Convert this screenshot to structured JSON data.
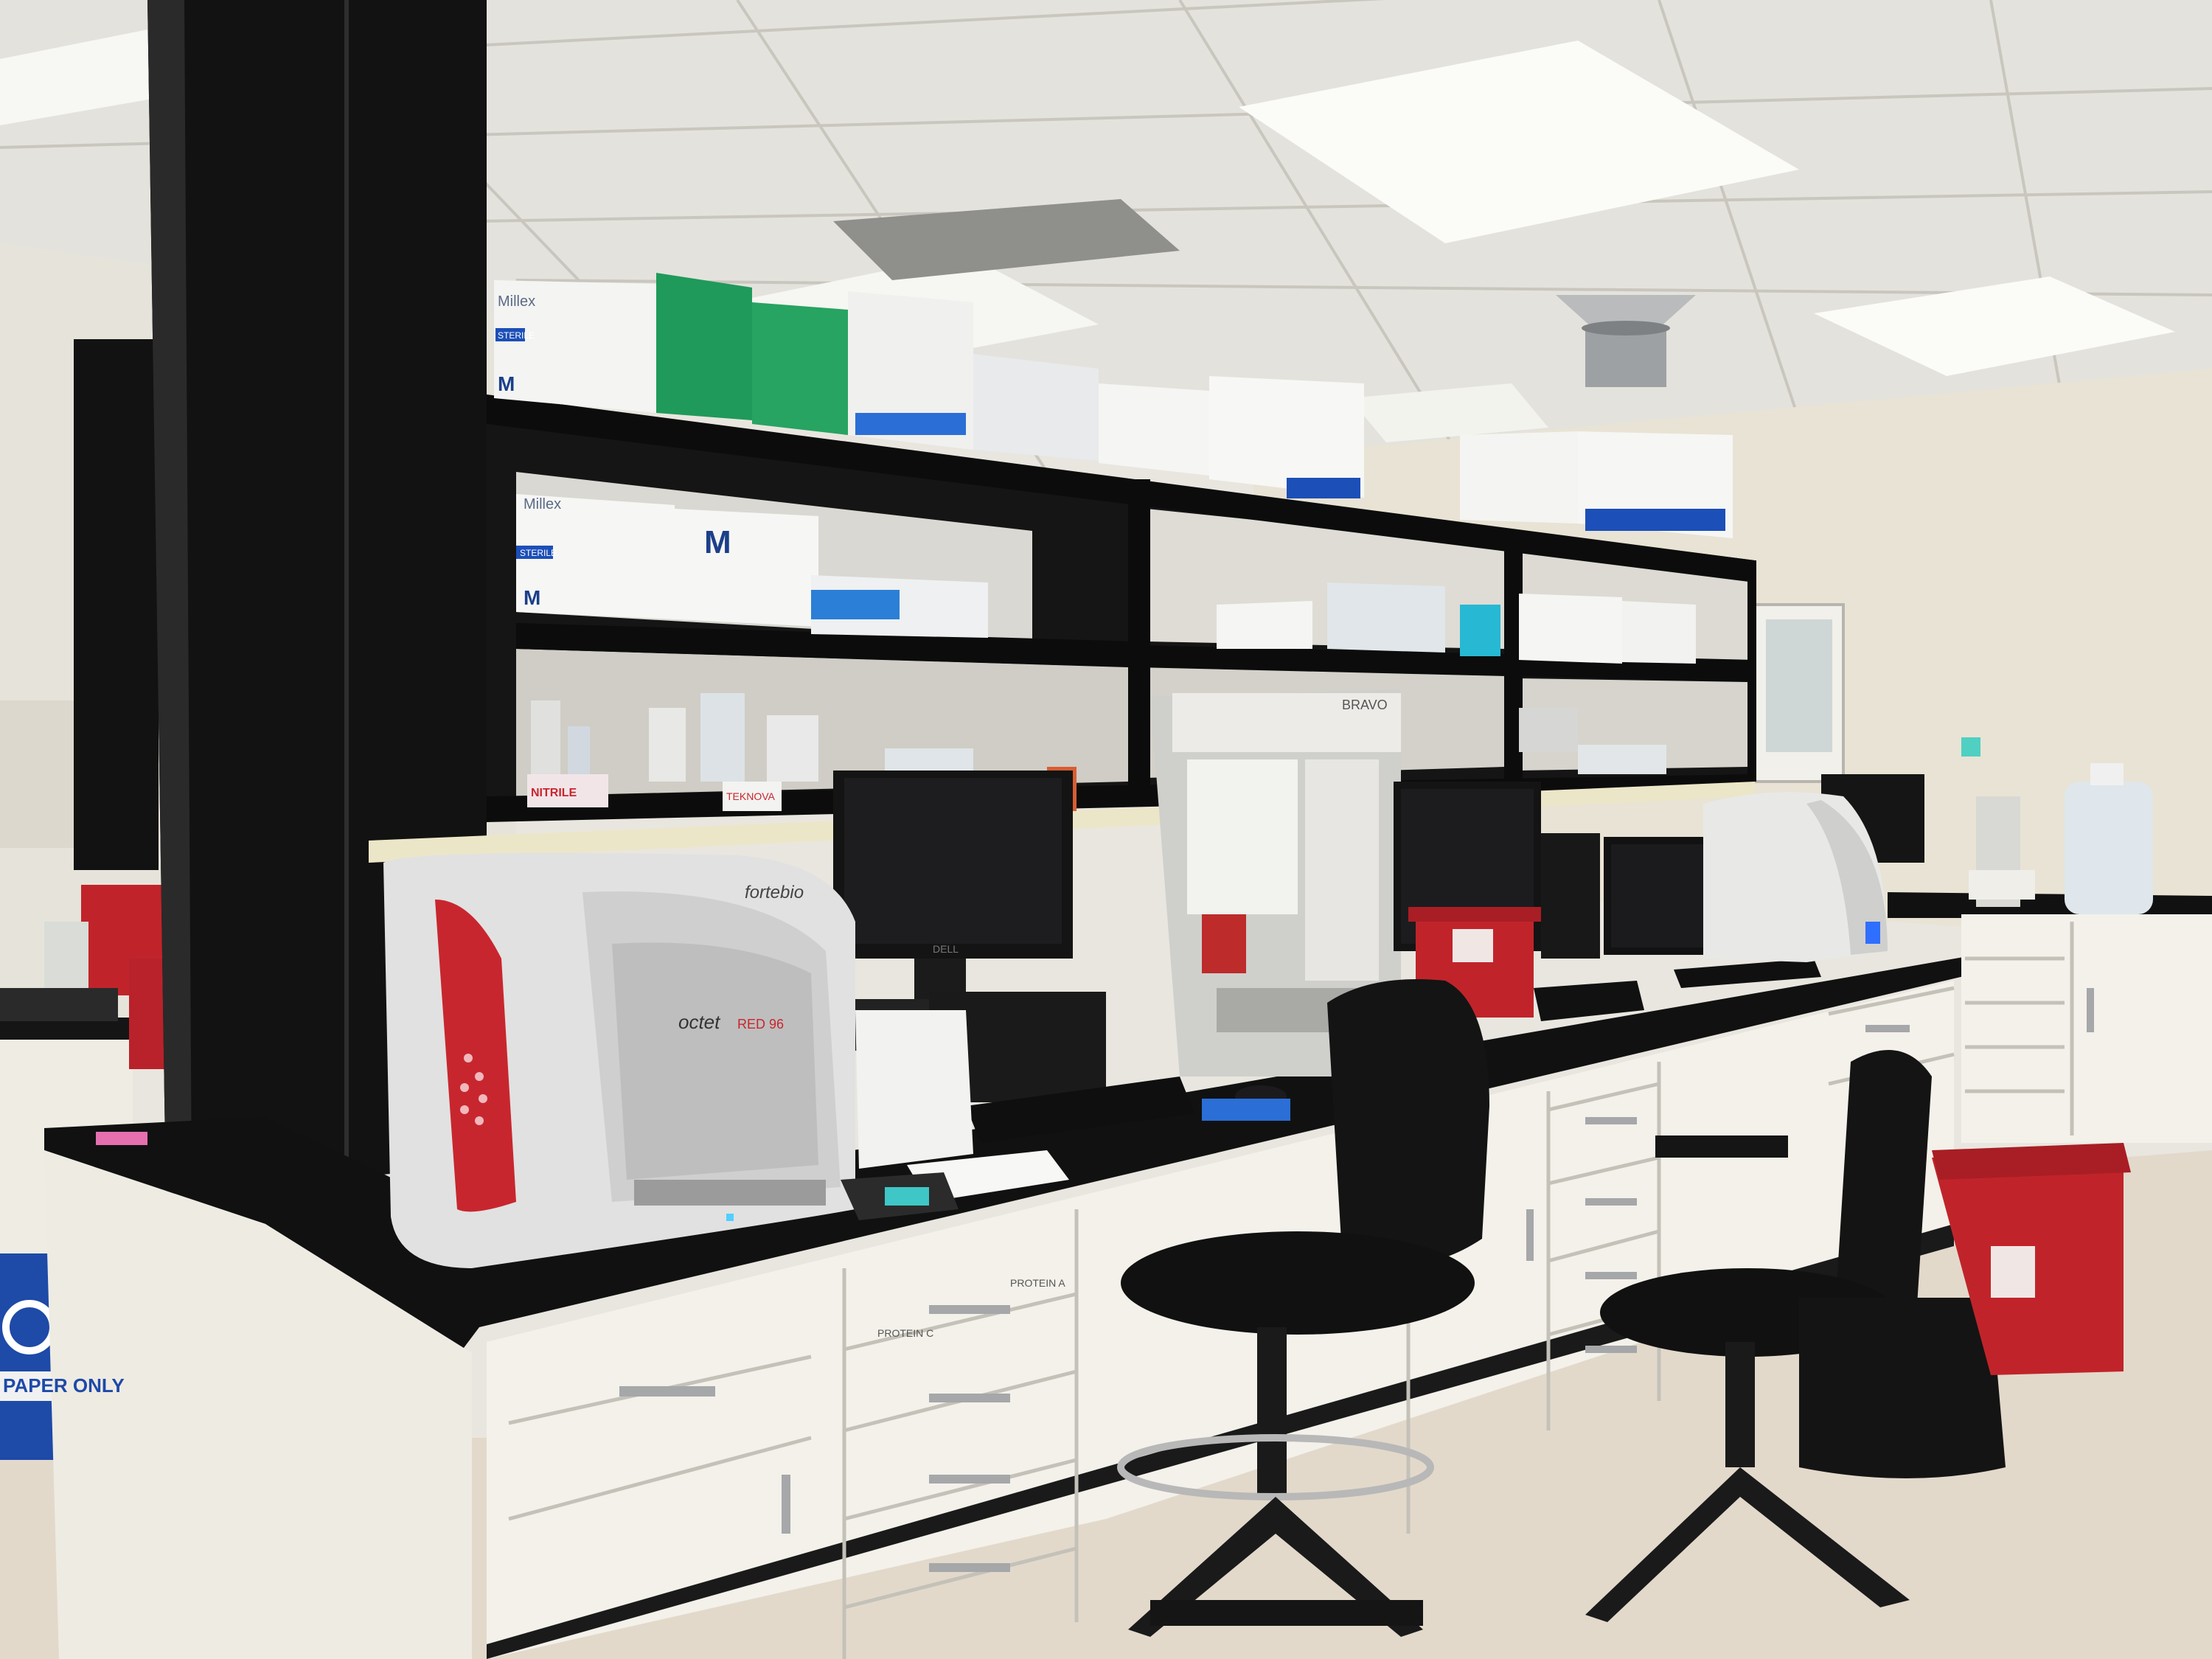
{
  "scene": {
    "kind": "laboratory-bench",
    "colors": {
      "ceiling": "#e4e2dc",
      "wall": "#e8e3d4",
      "floor": "#e2d9cb",
      "bench_top": "#111111",
      "cabinet": "#f3f1ea",
      "shelf_frame": "#0d0d0d",
      "instrument_red": "#c8262e",
      "instrument_body": "#e1e1e1",
      "sharps_red": "#c0242a",
      "recycle_blue": "#1e4aa8",
      "box_green": "#1f9a5a",
      "box_blue": "#1c4fb8"
    }
  },
  "labels": {
    "millex_1": "Millex",
    "millex_2": "Millex",
    "sterile_1": "STERILE",
    "sterile_2": "STERILE",
    "m_logo_1": "M",
    "m_logo_2": "M",
    "m_logo_3": "M",
    "bravo": "BRAVO",
    "fortebio": "fortebio",
    "octet": "octet",
    "octet_model": "RED 96",
    "dell": "DELL",
    "paper_only": "PAPER ONLY",
    "protein_c": "PROTEIN C",
    "protein_a": "PROTEIN A",
    "teknova": "TEKNOVA",
    "nitrile": "NITRILE"
  }
}
